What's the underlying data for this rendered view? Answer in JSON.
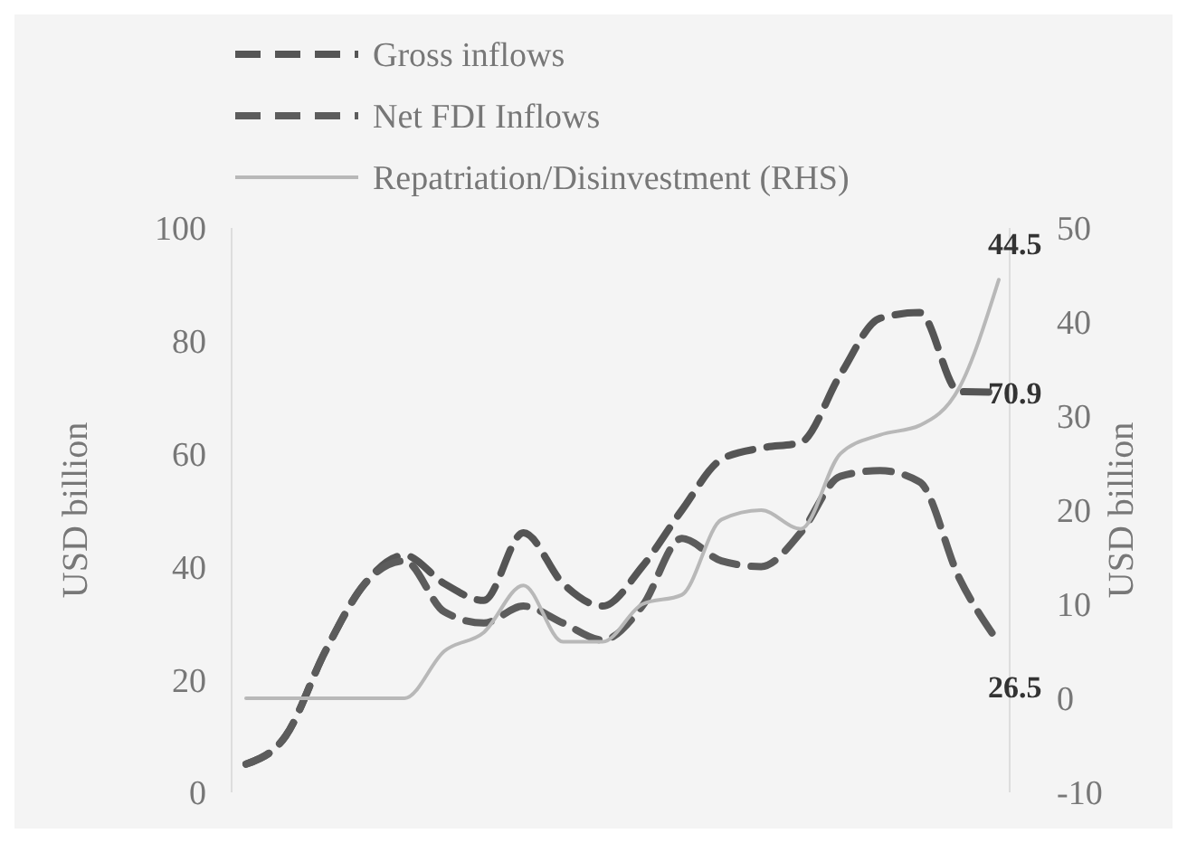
{
  "chart_data": {
    "type": "line",
    "ylabel": "USD billion",
    "y2label": "USD billion",
    "categories": [
      null,
      null,
      null,
      null,
      null,
      null,
      null,
      null,
      null,
      null,
      null,
      null,
      null,
      null,
      null,
      null,
      null,
      null,
      null,
      null
    ],
    "series": [
      {
        "name": "Gross inflows",
        "color": "#555555",
        "line_style": "dashed",
        "values": [
          5,
          10,
          25,
          37,
          42,
          37,
          34,
          46,
          37,
          33,
          40,
          50,
          59,
          61,
          62,
          74,
          84,
          85,
          71,
          70.9
        ],
        "value_labels": [
          null,
          null,
          null,
          null,
          null,
          null,
          null,
          null,
          null,
          null,
          null,
          null,
          null,
          null,
          null,
          null,
          null,
          null,
          null,
          "70.9"
        ]
      },
      {
        "name": "Net FDI Inflows",
        "color": "#5c5c5c",
        "line_style": "dashed",
        "values": [
          5,
          10,
          25,
          37,
          41,
          32,
          30,
          33,
          30,
          27,
          33,
          45,
          41,
          40,
          46,
          56,
          57,
          55,
          38,
          26.5
        ],
        "value_labels": [
          null,
          null,
          null,
          null,
          null,
          null,
          null,
          null,
          null,
          null,
          null,
          null,
          null,
          null,
          null,
          null,
          null,
          null,
          null,
          "26.5"
        ]
      },
      {
        "name": "Repatriation/Disinvestment (RHS)",
        "color": "#b8b8b8",
        "line_style": "solid",
        "axis": "y2",
        "values": [
          0,
          0,
          0,
          0,
          0,
          5,
          7,
          12,
          6,
          6,
          10,
          11,
          19,
          20,
          18,
          26,
          28,
          29,
          33,
          44.5
        ],
        "value_labels": [
          null,
          null,
          null,
          null,
          null,
          null,
          null,
          null,
          null,
          null,
          null,
          null,
          null,
          null,
          null,
          null,
          null,
          null,
          null,
          "44.5"
        ]
      }
    ],
    "ylim": [
      0,
      100
    ],
    "yticks": [
      0,
      20,
      40,
      60,
      80,
      100
    ],
    "y2lim": [
      -10,
      50
    ],
    "y2ticks": [
      -10,
      0,
      10,
      20,
      30,
      40,
      50
    ],
    "grid": false,
    "legend": "top left",
    "tick_labels": "y"
  }
}
